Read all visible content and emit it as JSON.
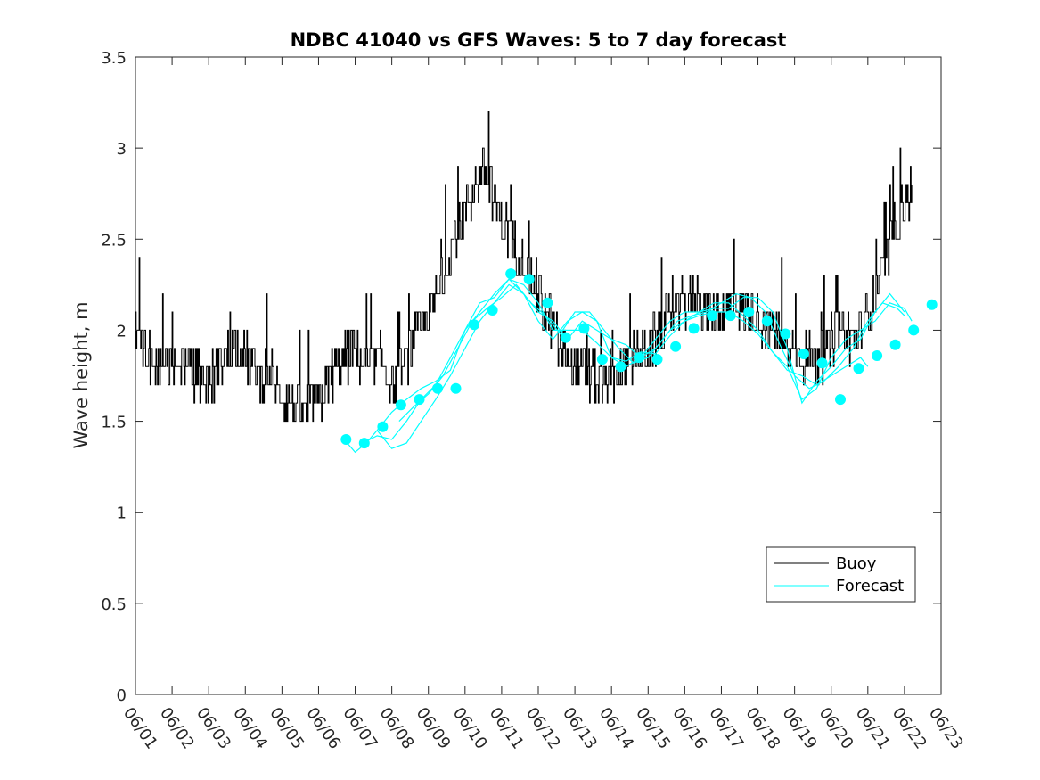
{
  "chart_data": {
    "type": "line",
    "title": "NDBC 41040 vs GFS Waves: 5 to 7 day forecast",
    "ylabel": "Wave height, m",
    "xlabel": "",
    "xlim": [
      0,
      22
    ],
    "ylim": [
      0,
      3.5
    ],
    "x_tick_labels": [
      "06/01",
      "06/02",
      "06/03",
      "06/04",
      "06/05",
      "06/06",
      "06/07",
      "06/08",
      "06/09",
      "06/10",
      "06/11",
      "06/12",
      "06/13",
      "06/14",
      "06/15",
      "06/16",
      "06/17",
      "06/18",
      "06/19",
      "06/20",
      "06/21",
      "06/22",
      "06/23"
    ],
    "y_ticks": [
      0,
      0.5,
      1,
      1.5,
      2,
      2.5,
      3,
      3.5
    ],
    "y_tick_labels": [
      "0",
      "0.5",
      "1",
      "1.5",
      "2",
      "2.5",
      "3",
      "3.5"
    ],
    "grid": false,
    "legend": {
      "placement": "bottom-right",
      "entries": [
        "Buoy",
        "Forecast"
      ]
    },
    "colors": {
      "buoy": "#000000",
      "forecast": "#00ffff",
      "axes": "#262626"
    },
    "buoy_anchors": [
      [
        0.0,
        2.0
      ],
      [
        0.3,
        1.85
      ],
      [
        0.6,
        1.8
      ],
      [
        1.0,
        1.85
      ],
      [
        1.4,
        1.8
      ],
      [
        1.7,
        1.75
      ],
      [
        2.0,
        1.7
      ],
      [
        2.4,
        1.85
      ],
      [
        2.7,
        1.9
      ],
      [
        3.0,
        1.85
      ],
      [
        3.4,
        1.75
      ],
      [
        3.7,
        1.75
      ],
      [
        4.0,
        1.65
      ],
      [
        4.3,
        1.6
      ],
      [
        4.6,
        1.55
      ],
      [
        5.0,
        1.6
      ],
      [
        5.3,
        1.75
      ],
      [
        5.7,
        1.85
      ],
      [
        6.0,
        1.9
      ],
      [
        6.3,
        1.8
      ],
      [
        6.6,
        1.85
      ],
      [
        6.9,
        1.75
      ],
      [
        7.1,
        1.7
      ],
      [
        7.4,
        1.85
      ],
      [
        7.7,
        2.0
      ],
      [
        8.0,
        2.1
      ],
      [
        8.3,
        2.2
      ],
      [
        8.6,
        2.45
      ],
      [
        8.9,
        2.6
      ],
      [
        9.2,
        2.75
      ],
      [
        9.5,
        2.9
      ],
      [
        9.8,
        2.7
      ],
      [
        10.1,
        2.55
      ],
      [
        10.4,
        2.45
      ],
      [
        10.8,
        2.3
      ],
      [
        11.2,
        2.1
      ],
      [
        11.6,
        1.9
      ],
      [
        12.0,
        1.8
      ],
      [
        12.4,
        1.75
      ],
      [
        12.7,
        1.7
      ],
      [
        13.0,
        1.75
      ],
      [
        13.4,
        1.8
      ],
      [
        13.7,
        1.85
      ],
      [
        14.0,
        1.9
      ],
      [
        14.4,
        2.0
      ],
      [
        14.7,
        2.1
      ],
      [
        15.0,
        2.15
      ],
      [
        15.3,
        2.2
      ],
      [
        15.6,
        2.1
      ],
      [
        16.0,
        2.1
      ],
      [
        16.4,
        2.15
      ],
      [
        16.8,
        2.1
      ],
      [
        17.1,
        2.05
      ],
      [
        17.5,
        2.0
      ],
      [
        17.8,
        1.9
      ],
      [
        18.2,
        1.85
      ],
      [
        18.6,
        1.85
      ],
      [
        18.9,
        1.9
      ],
      [
        19.3,
        2.0
      ],
      [
        19.6,
        1.95
      ],
      [
        19.9,
        2.05
      ],
      [
        20.2,
        2.2
      ],
      [
        20.5,
        2.4
      ],
      [
        20.8,
        2.6
      ],
      [
        21.0,
        2.7
      ],
      [
        21.2,
        2.75
      ]
    ],
    "forecast_runs": [
      [
        [
          5.7,
          1.4
        ],
        [
          6.0,
          1.33
        ],
        [
          6.3,
          1.38
        ],
        [
          6.6,
          1.45
        ],
        [
          7.0,
          1.55
        ],
        [
          7.4,
          1.62
        ],
        [
          7.8,
          1.68
        ],
        [
          8.2,
          1.72
        ],
        [
          8.6,
          1.78
        ],
        [
          9.0,
          2.0
        ],
        [
          9.4,
          2.15
        ],
        [
          9.8,
          2.18
        ],
        [
          10.2,
          2.28
        ],
        [
          10.6,
          2.25
        ],
        [
          11.0,
          2.15
        ],
        [
          11.4,
          2.0
        ],
        [
          11.8,
          2.0
        ],
        [
          12.2,
          2.0
        ],
        [
          12.6,
          1.93
        ],
        [
          13.0,
          1.85
        ],
        [
          13.4,
          1.83
        ],
        [
          13.8,
          1.88
        ],
        [
          14.2,
          1.87
        ],
        [
          14.6,
          1.97
        ],
        [
          15.0,
          2.05
        ],
        [
          15.4,
          2.08
        ],
        [
          15.8,
          2.1
        ],
        [
          16.2,
          2.1
        ],
        [
          16.6,
          2.05
        ],
        [
          17.0,
          1.98
        ],
        [
          17.4,
          1.88
        ],
        [
          17.8,
          1.8
        ],
        [
          18.2,
          1.62
        ],
        [
          18.6,
          1.68
        ],
        [
          19.0,
          1.85
        ],
        [
          19.4,
          1.95
        ],
        [
          19.8,
          2.0
        ],
        [
          20.2,
          2.05
        ],
        [
          20.6,
          2.15
        ],
        [
          21.0,
          2.12
        ],
        [
          21.2,
          2.05
        ]
      ],
      [
        [
          6.2,
          1.38
        ],
        [
          6.6,
          1.42
        ],
        [
          7.0,
          1.4
        ],
        [
          7.4,
          1.5
        ],
        [
          7.8,
          1.62
        ],
        [
          8.2,
          1.7
        ],
        [
          8.6,
          1.85
        ],
        [
          9.0,
          2.0
        ],
        [
          9.4,
          2.1
        ],
        [
          9.8,
          2.2
        ],
        [
          10.2,
          2.28
        ],
        [
          10.6,
          2.2
        ],
        [
          11.0,
          2.1
        ],
        [
          11.4,
          2.05
        ],
        [
          11.8,
          1.95
        ],
        [
          12.2,
          2.05
        ],
        [
          12.6,
          2.0
        ],
        [
          13.0,
          1.95
        ],
        [
          13.4,
          1.92
        ],
        [
          13.8,
          1.85
        ],
        [
          14.2,
          1.9
        ],
        [
          14.6,
          2.0
        ],
        [
          15.0,
          2.05
        ],
        [
          15.4,
          2.1
        ],
        [
          15.8,
          2.15
        ],
        [
          16.2,
          2.15
        ],
        [
          16.6,
          2.08
        ],
        [
          17.0,
          2.0
        ],
        [
          17.4,
          1.88
        ],
        [
          17.8,
          1.78
        ],
        [
          18.2,
          1.75
        ],
        [
          18.6,
          1.7
        ],
        [
          19.0,
          1.75
        ],
        [
          19.4,
          1.8
        ],
        [
          19.8,
          1.85
        ],
        [
          20.0,
          1.8
        ]
      ],
      [
        [
          6.6,
          1.45
        ],
        [
          7.0,
          1.35
        ],
        [
          7.4,
          1.38
        ],
        [
          7.8,
          1.5
        ],
        [
          8.2,
          1.62
        ],
        [
          8.6,
          1.75
        ],
        [
          9.0,
          1.9
        ],
        [
          9.4,
          2.05
        ],
        [
          9.8,
          2.15
        ],
        [
          10.2,
          2.25
        ],
        [
          10.6,
          2.2
        ],
        [
          11.0,
          2.05
        ],
        [
          11.4,
          1.95
        ],
        [
          11.8,
          2.05
        ],
        [
          12.2,
          2.1
        ],
        [
          12.6,
          2.05
        ],
        [
          13.0,
          1.85
        ],
        [
          13.4,
          1.8
        ],
        [
          13.8,
          1.85
        ],
        [
          14.2,
          1.95
        ],
        [
          14.6,
          2.05
        ],
        [
          15.0,
          2.1
        ],
        [
          15.4,
          2.1
        ],
        [
          15.8,
          2.12
        ],
        [
          16.2,
          2.12
        ],
        [
          16.6,
          2.18
        ],
        [
          17.0,
          2.18
        ],
        [
          17.4,
          2.1
        ],
        [
          17.8,
          1.9
        ],
        [
          18.2,
          1.6
        ],
        [
          18.6,
          1.72
        ],
        [
          19.0,
          1.8
        ],
        [
          19.4,
          1.9
        ],
        [
          19.8,
          1.95
        ],
        [
          20.2,
          2.1
        ],
        [
          20.6,
          2.2
        ],
        [
          21.0,
          2.1
        ]
      ],
      [
        [
          7.2,
          1.5
        ],
        [
          7.6,
          1.58
        ],
        [
          8.0,
          1.65
        ],
        [
          8.4,
          1.75
        ],
        [
          8.8,
          1.9
        ],
        [
          9.2,
          2.05
        ],
        [
          9.6,
          2.12
        ],
        [
          10.0,
          2.18
        ],
        [
          10.4,
          2.25
        ],
        [
          10.8,
          2.15
        ],
        [
          11.2,
          2.08
        ],
        [
          11.6,
          1.98
        ],
        [
          12.0,
          2.1
        ],
        [
          12.4,
          2.1
        ],
        [
          12.8,
          2.0
        ],
        [
          13.2,
          1.9
        ],
        [
          13.6,
          1.82
        ],
        [
          14.0,
          1.85
        ],
        [
          14.4,
          1.95
        ],
        [
          14.8,
          2.05
        ],
        [
          15.2,
          2.08
        ],
        [
          15.6,
          2.1
        ],
        [
          16.0,
          2.15
        ],
        [
          16.4,
          2.2
        ],
        [
          16.8,
          2.18
        ],
        [
          17.2,
          2.1
        ],
        [
          17.6,
          1.92
        ],
        [
          18.0,
          1.75
        ],
        [
          18.4,
          1.68
        ],
        [
          18.8,
          1.72
        ],
        [
          19.2,
          1.8
        ],
        [
          19.6,
          1.9
        ],
        [
          20.0,
          2.05
        ],
        [
          20.4,
          2.15
        ],
        [
          20.8,
          2.12
        ],
        [
          21.0,
          2.08
        ]
      ]
    ],
    "forecast_markers": [
      [
        5.75,
        1.4
      ],
      [
        6.25,
        1.38
      ],
      [
        6.75,
        1.47
      ],
      [
        7.25,
        1.59
      ],
      [
        7.75,
        1.62
      ],
      [
        8.25,
        1.68
      ],
      [
        8.75,
        1.68
      ],
      [
        9.25,
        2.03
      ],
      [
        9.75,
        2.11
      ],
      [
        10.25,
        2.31
      ],
      [
        10.75,
        2.28
      ],
      [
        11.25,
        2.15
      ],
      [
        11.75,
        1.96
      ],
      [
        12.25,
        2.01
      ],
      [
        12.75,
        1.84
      ],
      [
        13.25,
        1.8
      ],
      [
        13.75,
        1.85
      ],
      [
        14.25,
        1.84
      ],
      [
        14.75,
        1.91
      ],
      [
        15.25,
        2.01
      ],
      [
        15.75,
        2.08
      ],
      [
        16.25,
        2.08
      ],
      [
        16.75,
        2.1
      ],
      [
        17.25,
        2.05
      ],
      [
        17.75,
        1.98
      ],
      [
        18.25,
        1.87
      ],
      [
        18.75,
        1.82
      ],
      [
        19.25,
        1.62
      ],
      [
        19.75,
        1.79
      ],
      [
        20.25,
        1.86
      ],
      [
        20.75,
        1.92
      ],
      [
        21.25,
        2.0
      ],
      [
        21.75,
        2.14
      ]
    ]
  }
}
